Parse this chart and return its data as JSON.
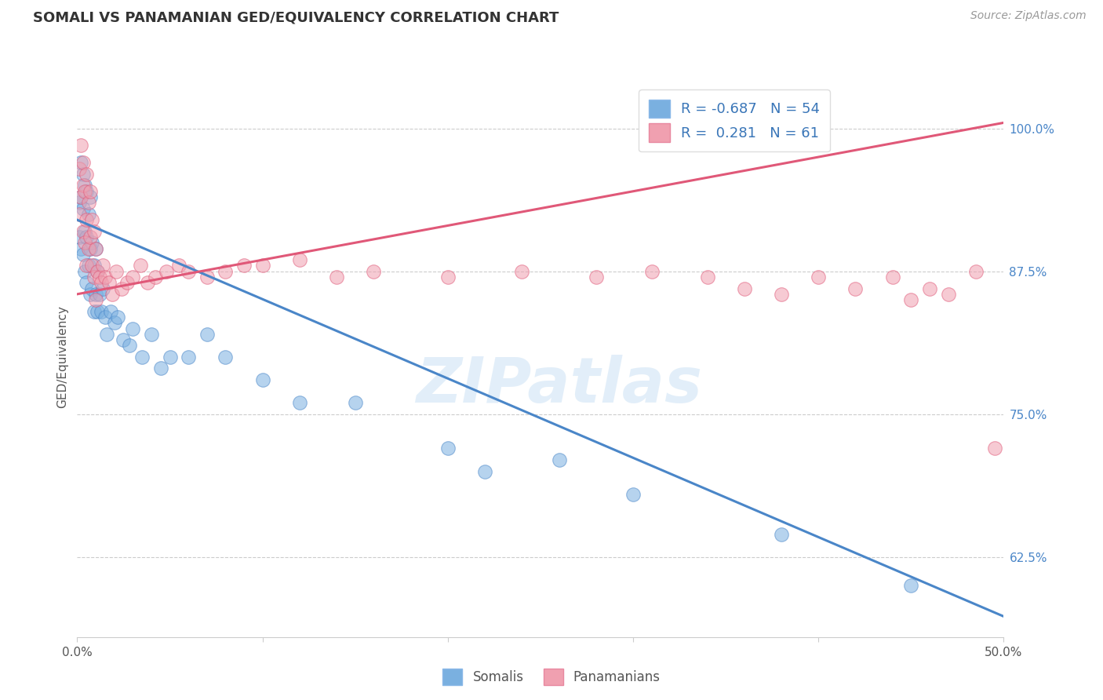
{
  "title": "SOMALI VS PANAMANIAN GED/EQUIVALENCY CORRELATION CHART",
  "source": "Source: ZipAtlas.com",
  "ylabel": "GED/Equivalency",
  "xlim": [
    0.0,
    0.5
  ],
  "ylim": [
    0.555,
    1.045
  ],
  "xticks": [
    0.0,
    0.1,
    0.2,
    0.3,
    0.4,
    0.5
  ],
  "xticklabels": [
    "0.0%",
    "",
    "",
    "",
    "",
    "50.0%"
  ],
  "yticks_right": [
    0.625,
    0.75,
    0.875,
    1.0
  ],
  "ytick_labels_right": [
    "62.5%",
    "75.0%",
    "87.5%",
    "100.0%"
  ],
  "blue_color": "#7ab0e0",
  "pink_color": "#f0a0b0",
  "blue_line_color": "#4a86c8",
  "pink_line_color": "#e05878",
  "legend_R_blue": "-0.687",
  "legend_N_blue": "54",
  "legend_R_pink": "0.281",
  "legend_N_pink": "61",
  "watermark_text": "ZIPatlas",
  "blue_line_x0": 0.0,
  "blue_line_y0": 0.92,
  "blue_line_x1": 0.5,
  "blue_line_y1": 0.573,
  "pink_line_x0": 0.0,
  "pink_line_y0": 0.855,
  "pink_line_x1": 0.5,
  "pink_line_y1": 1.005,
  "somali_x": [
    0.001,
    0.001,
    0.002,
    0.002,
    0.002,
    0.003,
    0.003,
    0.003,
    0.004,
    0.004,
    0.004,
    0.005,
    0.005,
    0.005,
    0.006,
    0.006,
    0.007,
    0.007,
    0.007,
    0.008,
    0.008,
    0.009,
    0.009,
    0.01,
    0.01,
    0.011,
    0.011,
    0.012,
    0.013,
    0.014,
    0.015,
    0.016,
    0.018,
    0.02,
    0.022,
    0.025,
    0.028,
    0.03,
    0.035,
    0.04,
    0.045,
    0.05,
    0.06,
    0.07,
    0.08,
    0.1,
    0.12,
    0.15,
    0.2,
    0.22,
    0.26,
    0.3,
    0.38,
    0.45
  ],
  "somali_y": [
    0.935,
    0.905,
    0.97,
    0.94,
    0.895,
    0.96,
    0.93,
    0.89,
    0.95,
    0.91,
    0.875,
    0.945,
    0.905,
    0.865,
    0.925,
    0.88,
    0.94,
    0.895,
    0.855,
    0.9,
    0.86,
    0.88,
    0.84,
    0.895,
    0.855,
    0.875,
    0.84,
    0.855,
    0.84,
    0.86,
    0.835,
    0.82,
    0.84,
    0.83,
    0.835,
    0.815,
    0.81,
    0.825,
    0.8,
    0.82,
    0.79,
    0.8,
    0.8,
    0.82,
    0.8,
    0.78,
    0.76,
    0.76,
    0.72,
    0.7,
    0.71,
    0.68,
    0.645,
    0.6
  ],
  "panama_x": [
    0.001,
    0.001,
    0.002,
    0.002,
    0.003,
    0.003,
    0.003,
    0.004,
    0.004,
    0.005,
    0.005,
    0.005,
    0.006,
    0.006,
    0.007,
    0.007,
    0.008,
    0.008,
    0.009,
    0.009,
    0.01,
    0.01,
    0.011,
    0.012,
    0.013,
    0.014,
    0.015,
    0.017,
    0.019,
    0.021,
    0.024,
    0.027,
    0.03,
    0.034,
    0.038,
    0.042,
    0.048,
    0.055,
    0.06,
    0.07,
    0.08,
    0.09,
    0.1,
    0.12,
    0.14,
    0.16,
    0.2,
    0.24,
    0.28,
    0.31,
    0.34,
    0.36,
    0.38,
    0.4,
    0.42,
    0.44,
    0.45,
    0.46,
    0.47,
    0.485,
    0.495
  ],
  "panama_y": [
    0.965,
    0.925,
    0.985,
    0.94,
    0.97,
    0.95,
    0.91,
    0.945,
    0.9,
    0.96,
    0.92,
    0.88,
    0.935,
    0.895,
    0.945,
    0.905,
    0.92,
    0.88,
    0.91,
    0.87,
    0.895,
    0.85,
    0.875,
    0.87,
    0.865,
    0.88,
    0.87,
    0.865,
    0.855,
    0.875,
    0.86,
    0.865,
    0.87,
    0.88,
    0.865,
    0.87,
    0.875,
    0.88,
    0.875,
    0.87,
    0.875,
    0.88,
    0.88,
    0.885,
    0.87,
    0.875,
    0.87,
    0.875,
    0.87,
    0.875,
    0.87,
    0.86,
    0.855,
    0.87,
    0.86,
    0.87,
    0.85,
    0.86,
    0.855,
    0.875,
    0.72
  ]
}
